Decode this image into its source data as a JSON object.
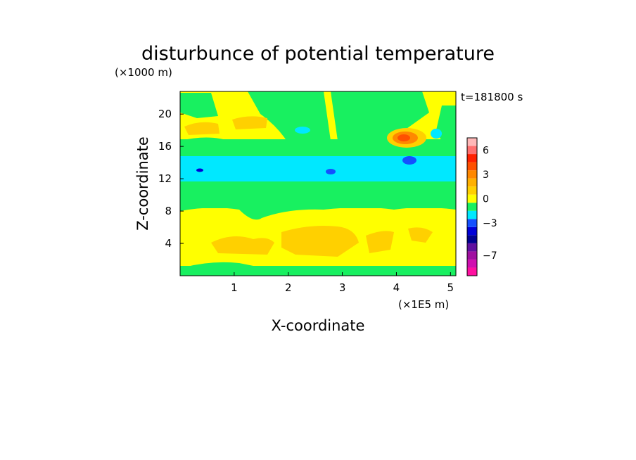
{
  "chart_data": {
    "type": "heatmap",
    "title": "disturbunce of potential temperature",
    "xlabel": "X-coordinate",
    "ylabel": "Z-coordinate",
    "x_unit": "(×1E5 m)",
    "y_unit": "(×1000 m)",
    "time_label": "t=181800 s",
    "xlim": [
      0,
      5.1
    ],
    "ylim": [
      0,
      22.8
    ],
    "x_ticks": [
      1,
      2,
      3,
      4,
      5
    ],
    "y_ticks": [
      4,
      8,
      12,
      16,
      20
    ],
    "colorbar": {
      "levels": [
        -9,
        -8,
        -7,
        -6,
        -5,
        -4,
        -3,
        -2,
        -1,
        0,
        1,
        2,
        3,
        4,
        5,
        6,
        7
      ],
      "tick_labels": [
        {
          "value": 6,
          "label": "6"
        },
        {
          "value": 3,
          "label": "3"
        },
        {
          "value": 0,
          "label": "0"
        },
        {
          "value": -3,
          "label": "−3"
        },
        {
          "value": -7,
          "label": "−7"
        }
      ],
      "colors": [
        "#ff10a0",
        "#d010b0",
        "#a010a0",
        "#6010a0",
        "#000090",
        "#0000d8",
        "#1450ff",
        "#00e8ff",
        "#18f060",
        "#ffff00",
        "#ffd000",
        "#ffb000",
        "#ff8800",
        "#ff5000",
        "#ff2000",
        "#ff7070",
        "#ffb8b8"
      ]
    },
    "bands": [
      {
        "z": [
          0.0,
          0.8
        ],
        "value": 0.5
      },
      {
        "z": [
          0.8,
          8.3
        ],
        "value": 1.0
      },
      {
        "z": [
          8.3,
          11.2
        ],
        "value": 0.0
      },
      {
        "z": [
          11.2,
          14.8
        ],
        "value": -1.0
      },
      {
        "z": [
          14.8,
          16.8
        ],
        "value": 0.0
      },
      {
        "z": [
          16.8,
          19.5
        ],
        "value": 1.0
      },
      {
        "z": [
          19.5,
          22.8
        ],
        "value": 0.5
      }
    ]
  }
}
